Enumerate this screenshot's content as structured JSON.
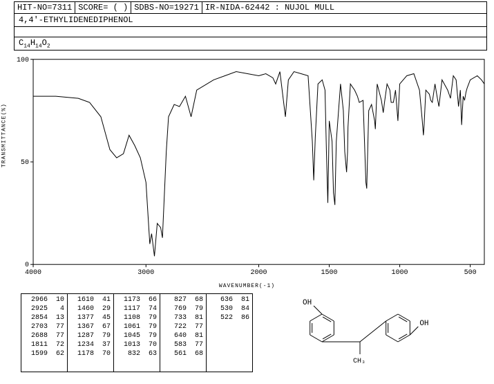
{
  "header": {
    "hit_no_label": "HIT-NO=7311",
    "score_label": "SCORE=  ( )",
    "sdbs_label": "SDBS-NO=19271",
    "ir_label": "IR-NIDA-62442 : NUJOL MULL"
  },
  "compound_name": "4,4'-ETHYLIDENEDIPHENOL",
  "formula_html": "C<sub>14</sub>H<sub>14</sub>O<sub>2</sub>",
  "chart": {
    "type": "line",
    "xlabel": "WAVENUMBER(-1)",
    "ylabel": "TRANSMITTANCE(%)",
    "ylim": [
      0,
      100
    ],
    "yticks": [
      0,
      50,
      100
    ],
    "xlim": [
      4000,
      400
    ],
    "xticks": [
      4000,
      3000,
      2000,
      1500,
      1000,
      500
    ],
    "background": "#ffffff",
    "line_color": "#000000",
    "line_width": 1,
    "axis_color": "#000000",
    "grid": false,
    "tick_fontsize": 10,
    "label_fontsize": 8,
    "spectrum": [
      [
        4000,
        82
      ],
      [
        3800,
        82
      ],
      [
        3600,
        81
      ],
      [
        3500,
        79
      ],
      [
        3400,
        72
      ],
      [
        3320,
        56
      ],
      [
        3260,
        52
      ],
      [
        3200,
        54
      ],
      [
        3150,
        63
      ],
      [
        3100,
        58
      ],
      [
        3050,
        52
      ],
      [
        3000,
        40
      ],
      [
        2966,
        10
      ],
      [
        2950,
        15
      ],
      [
        2925,
        4
      ],
      [
        2900,
        20
      ],
      [
        2870,
        18
      ],
      [
        2854,
        13
      ],
      [
        2820,
        55
      ],
      [
        2800,
        72
      ],
      [
        2750,
        78
      ],
      [
        2703,
        77
      ],
      [
        2650,
        82
      ],
      [
        2600,
        72
      ],
      [
        2550,
        85
      ],
      [
        2400,
        90
      ],
      [
        2300,
        92
      ],
      [
        2200,
        94
      ],
      [
        2100,
        93
      ],
      [
        2000,
        92
      ],
      [
        1950,
        93
      ],
      [
        1900,
        91
      ],
      [
        1880,
        88
      ],
      [
        1850,
        94
      ],
      [
        1811,
        72
      ],
      [
        1790,
        90
      ],
      [
        1750,
        94
      ],
      [
        1700,
        93
      ],
      [
        1650,
        92
      ],
      [
        1620,
        60
      ],
      [
        1610,
        41
      ],
      [
        1599,
        62
      ],
      [
        1580,
        88
      ],
      [
        1550,
        90
      ],
      [
        1530,
        85
      ],
      [
        1520,
        55
      ],
      [
        1510,
        30
      ],
      [
        1500,
        70
      ],
      [
        1480,
        60
      ],
      [
        1470,
        35
      ],
      [
        1460,
        29
      ],
      [
        1450,
        60
      ],
      [
        1420,
        88
      ],
      [
        1400,
        75
      ],
      [
        1390,
        55
      ],
      [
        1377,
        45
      ],
      [
        1370,
        55
      ],
      [
        1367,
        67
      ],
      [
        1350,
        88
      ],
      [
        1320,
        85
      ],
      [
        1300,
        82
      ],
      [
        1287,
        79
      ],
      [
        1260,
        80
      ],
      [
        1240,
        40
      ],
      [
        1234,
        37
      ],
      [
        1220,
        75
      ],
      [
        1200,
        78
      ],
      [
        1178,
        70
      ],
      [
        1173,
        66
      ],
      [
        1160,
        88
      ],
      [
        1130,
        80
      ],
      [
        1117,
        74
      ],
      [
        1108,
        79
      ],
      [
        1090,
        88
      ],
      [
        1070,
        85
      ],
      [
        1061,
        79
      ],
      [
        1045,
        79
      ],
      [
        1030,
        85
      ],
      [
        1013,
        70
      ],
      [
        1000,
        88
      ],
      [
        950,
        92
      ],
      [
        900,
        93
      ],
      [
        860,
        85
      ],
      [
        840,
        70
      ],
      [
        832,
        63
      ],
      [
        827,
        68
      ],
      [
        815,
        85
      ],
      [
        790,
        83
      ],
      [
        780,
        80
      ],
      [
        769,
        79
      ],
      [
        750,
        88
      ],
      [
        733,
        81
      ],
      [
        722,
        77
      ],
      [
        700,
        90
      ],
      [
        660,
        85
      ],
      [
        640,
        81
      ],
      [
        620,
        92
      ],
      [
        600,
        90
      ],
      [
        583,
        77
      ],
      [
        570,
        85
      ],
      [
        561,
        68
      ],
      [
        550,
        82
      ],
      [
        540,
        80
      ],
      [
        530,
        84
      ],
      [
        522,
        86
      ],
      [
        500,
        90
      ],
      [
        450,
        92
      ],
      [
        420,
        90
      ],
      [
        400,
        88
      ]
    ]
  },
  "peak_table": {
    "font_size": 10,
    "cols": [
      [
        [
          2966,
          10
        ],
        [
          2925,
          4
        ],
        [
          2854,
          13
        ],
        [
          2703,
          77
        ],
        [
          2688,
          77
        ],
        [
          1811,
          72
        ],
        [
          1599,
          62
        ]
      ],
      [
        [
          1610,
          41
        ],
        [
          1460,
          29
        ],
        [
          1377,
          45
        ],
        [
          1367,
          67
        ],
        [
          1287,
          79
        ],
        [
          1234,
          37
        ],
        [
          1178,
          70
        ]
      ],
      [
        [
          1173,
          66
        ],
        [
          1117,
          74
        ],
        [
          1108,
          79
        ],
        [
          1061,
          79
        ],
        [
          1045,
          79
        ],
        [
          1013,
          70
        ],
        [
          832,
          63
        ]
      ],
      [
        [
          827,
          68
        ],
        [
          769,
          79
        ],
        [
          733,
          81
        ],
        [
          722,
          77
        ],
        [
          640,
          81
        ],
        [
          583,
          77
        ],
        [
          561,
          68
        ]
      ],
      [
        [
          636,
          81
        ],
        [
          530,
          84
        ],
        [
          522,
          86
        ]
      ]
    ]
  },
  "structure": {
    "line_color": "#000000",
    "text_color": "#000000",
    "labels": {
      "oh_left": "OH",
      "oh_right": "OH",
      "ch3": "CH₃"
    }
  }
}
